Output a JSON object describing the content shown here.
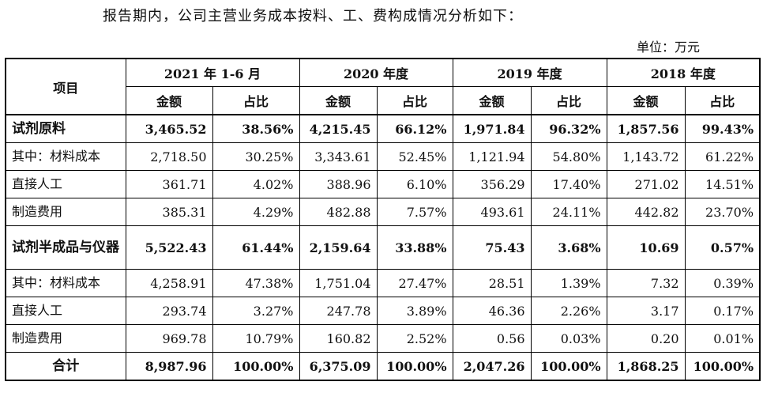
{
  "intro": "报告期内，公司主营业务成本按料、工、费构成情况分析如下：",
  "unit": "单位：万元",
  "table": {
    "item_header": "项目",
    "periods": [
      "2021 年 1-6 月",
      "2020 年度",
      "2019 年度",
      "2018 年度"
    ],
    "sub_headers": [
      "金额",
      "占比",
      "金额",
      "占比",
      "金额",
      "占比",
      "金额",
      "占比"
    ],
    "rows": [
      {
        "label": "试剂原料",
        "cells": [
          "3,465.52",
          "38.56%",
          "4,215.45",
          "66.12%",
          "1,971.84",
          "96.32%",
          "1,857.56",
          "99.43%"
        ]
      },
      {
        "label": "其中：材料成本",
        "cells": [
          "2,718.50",
          "30.25%",
          "3,343.61",
          "52.45%",
          "1,121.94",
          "54.80%",
          "1,143.72",
          "61.22%"
        ]
      },
      {
        "label": "直接人工",
        "cells": [
          "361.71",
          "4.02%",
          "388.96",
          "6.10%",
          "356.29",
          "17.40%",
          "271.02",
          "14.51%"
        ]
      },
      {
        "label": "制造费用",
        "cells": [
          "385.31",
          "4.29%",
          "482.88",
          "7.57%",
          "493.61",
          "24.11%",
          "442.82",
          "23.70%"
        ]
      },
      {
        "label": "试剂半成品与仪器",
        "cells": [
          "5,522.43",
          "61.44%",
          "2,159.64",
          "33.88%",
          "75.43",
          "3.68%",
          "10.69",
          "0.57%"
        ]
      },
      {
        "label": "其中：材料成本",
        "cells": [
          "4,258.91",
          "47.38%",
          "1,751.04",
          "27.47%",
          "28.51",
          "1.39%",
          "7.32",
          "0.39%"
        ]
      },
      {
        "label": "直接人工",
        "cells": [
          "293.74",
          "3.27%",
          "247.78",
          "3.89%",
          "46.36",
          "2.26%",
          "3.17",
          "0.17%"
        ]
      },
      {
        "label": "制造费用",
        "cells": [
          "969.78",
          "10.79%",
          "160.82",
          "2.52%",
          "0.56",
          "0.03%",
          "0.20",
          "0.01%"
        ]
      },
      {
        "label": "合计",
        "cells": [
          "8,987.96",
          "100.00%",
          "6,375.09",
          "100.00%",
          "2,047.26",
          "100.00%",
          "1,868.25",
          "100.00%"
        ]
      }
    ]
  }
}
